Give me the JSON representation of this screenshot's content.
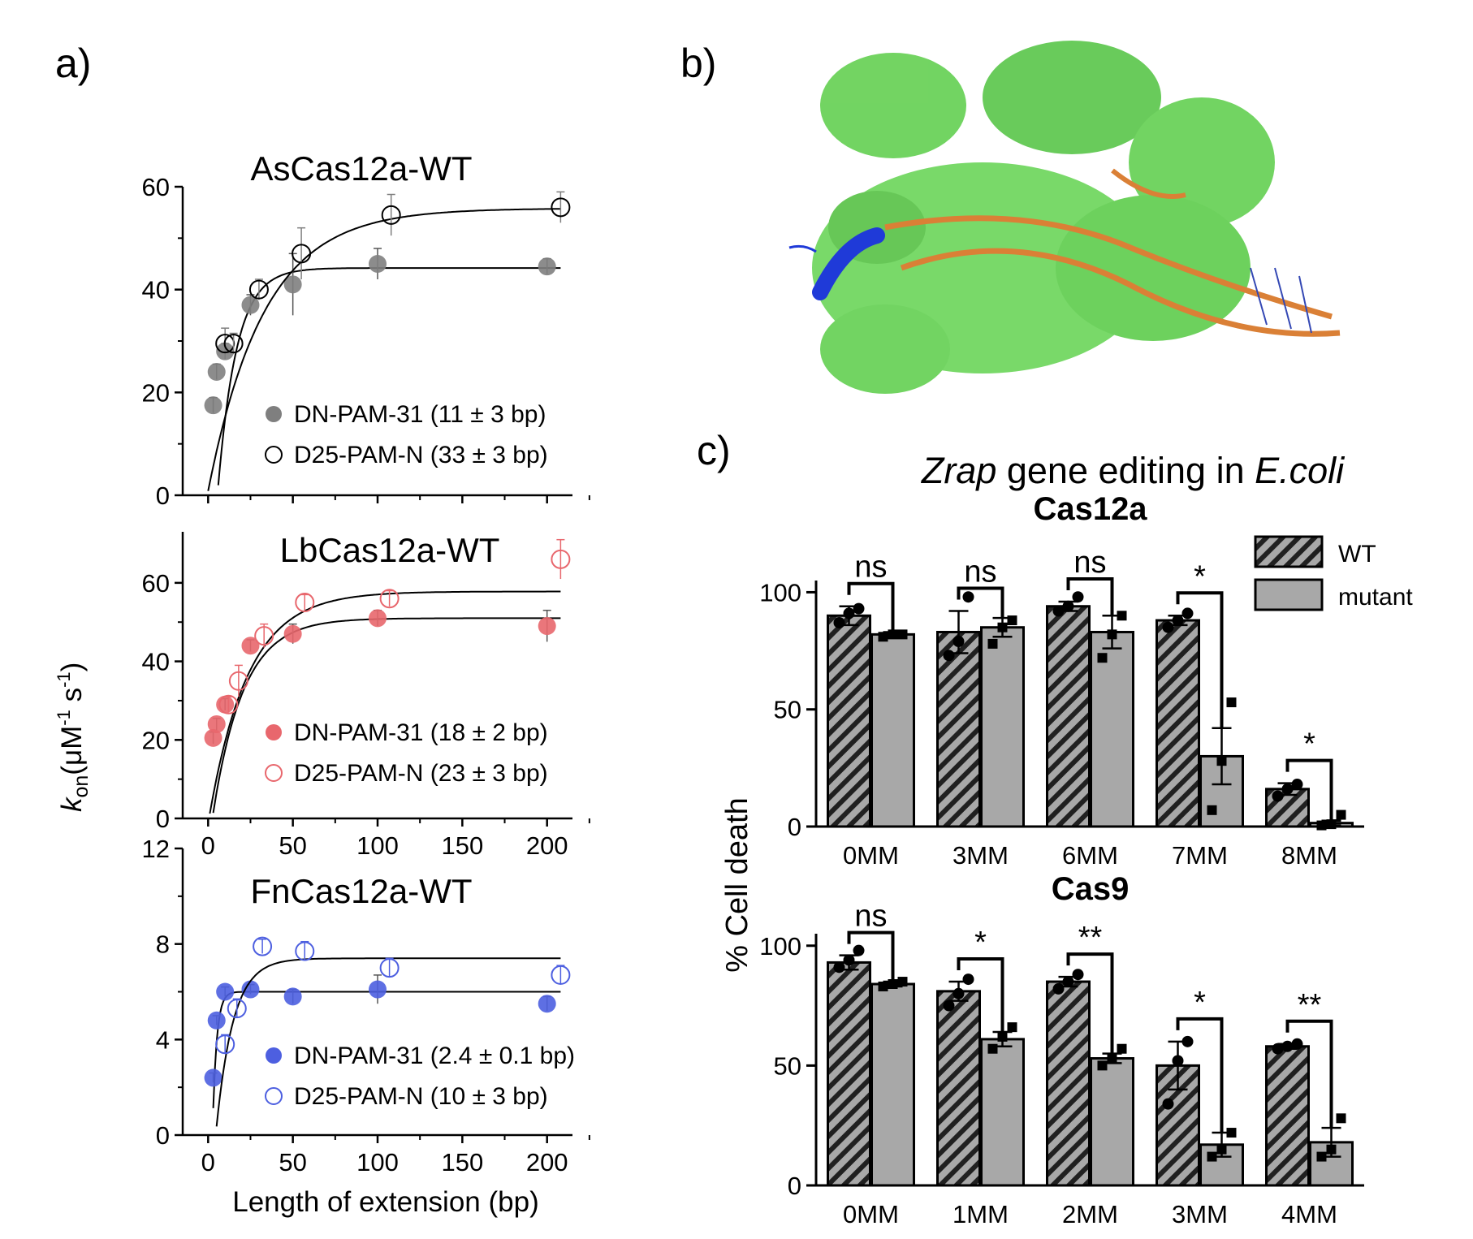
{
  "panel_labels": {
    "a": "a)",
    "b": "b)",
    "c": "c)"
  },
  "colors": {
    "grey": "#7f7f7f",
    "red": "#e8676d",
    "blue": "#4d5fe0",
    "protein_green": "#6bd25a",
    "helix_blue": "#1430d6",
    "dna_orange": "#d97a2c",
    "bar_grey": "#a8a8a8"
  },
  "structure_image": {
    "icon": "protein-structure-icon"
  },
  "shared": {
    "ylabel_main": "k",
    "ylabel_sub": "on",
    "ylabel_rest": "(μM",
    "ylabel_sup": "-1",
    "ylabel_rest2": " s",
    "ylabel_sup2": "-1",
    "ylabel_close": ")",
    "xlabel": "Length of extension (bp)",
    "xticks": [
      "0",
      "50",
      "100",
      "150",
      "200"
    ]
  },
  "chart_data": [
    {
      "type": "scatter",
      "title": "AsCas12a-WT",
      "xlim": [
        -15,
        215
      ],
      "ylim": [
        0,
        60
      ],
      "yticks": [
        "0",
        "20",
        "40",
        "60"
      ],
      "show_xticks": false,
      "color": "#7f7f7f",
      "series": [
        {
          "name": "DN-PAM-31",
          "legend": "DN-PAM-31 (11 ± 3 bp)",
          "filled": true,
          "x": [
            3,
            5,
            10,
            25,
            50,
            100,
            200
          ],
          "y": [
            17.5,
            24,
            28,
            37,
            41,
            45,
            44.5
          ],
          "err": [
            1.5,
            1.5,
            1.5,
            2,
            6,
            3,
            1.5
          ],
          "fit": {
            "a": 44.2,
            "tau": 11,
            "c": 6
          }
        },
        {
          "name": "D25-PAM-N",
          "legend": "D25-PAM-N (33 ± 3 bp)",
          "filled": false,
          "x": [
            10,
            15,
            30,
            55,
            108,
            208
          ],
          "y": [
            29.5,
            29.5,
            40,
            47,
            54.5,
            56
          ],
          "err": [
            3,
            2,
            2,
            5,
            4,
            3
          ],
          "fit": {
            "a": 55.8,
            "tau": 33,
            "c": 0
          }
        }
      ]
    },
    {
      "type": "scatter",
      "title": "LbCas12a-WT",
      "xlim": [
        -15,
        215
      ],
      "ylim": [
        0,
        73
      ],
      "yticks": [
        "0",
        "20",
        "40",
        "60"
      ],
      "show_xticks": true,
      "color": "#e8676d",
      "series": [
        {
          "name": "DN-PAM-31",
          "legend": "DN-PAM-31 (18 ± 2 bp)",
          "filled": true,
          "x": [
            3,
            5,
            10,
            25,
            50,
            100,
            200
          ],
          "y": [
            20.5,
            24,
            29,
            44,
            47,
            51,
            49
          ],
          "err": [
            1.5,
            1.5,
            1.5,
            1.5,
            2.5,
            2,
            4
          ],
          "fit": {
            "a": 51,
            "tau": 18,
            "c": 3
          }
        },
        {
          "name": "D25-PAM-N",
          "legend": "D25-PAM-N (23 ± 3 bp)",
          "filled": false,
          "x": [
            12,
            18,
            33,
            57,
            107,
            208
          ],
          "y": [
            29,
            35,
            46.5,
            55,
            56,
            66
          ],
          "err": [
            2,
            4,
            3,
            2,
            2,
            5
          ],
          "fit": {
            "a": 57.8,
            "tau": 23,
            "c": 1
          }
        }
      ]
    },
    {
      "type": "scatter",
      "title": "FnCas12a-WT",
      "xlim": [
        -15,
        215
      ],
      "ylim": [
        0,
        12
      ],
      "yticks": [
        "0",
        "4",
        "8",
        "12"
      ],
      "show_xticks": true,
      "color": "#4d5fe0",
      "series": [
        {
          "name": "DN-PAM-31",
          "legend": "DN-PAM-31 (2.4 ± 0.1 bp)",
          "filled": true,
          "x": [
            3,
            5,
            10,
            25,
            50,
            100,
            200
          ],
          "y": [
            2.4,
            4.8,
            6.0,
            6.1,
            5.8,
            6.1,
            5.5
          ],
          "err": [
            0.2,
            0.2,
            0.2,
            0.2,
            0.3,
            0.6,
            0.3
          ],
          "fit": {
            "a": 6.0,
            "tau": 2.4,
            "c": 3
          }
        },
        {
          "name": "D25-PAM-N",
          "legend": "D25-PAM-N (10 ± 3 bp)",
          "filled": false,
          "x": [
            10,
            17,
            32,
            57,
            107,
            208
          ],
          "y": [
            3.8,
            5.3,
            7.9,
            7.7,
            7.0,
            6.7
          ],
          "err": [
            0.4,
            0.4,
            0.3,
            0.4,
            0.4,
            0.4
          ],
          "fit": {
            "a": 7.4,
            "tau": 10,
            "c": 5
          }
        }
      ]
    },
    {
      "type": "bar",
      "title": "Cas12a",
      "ylabel": "% Cell death",
      "ylim": [
        0,
        105
      ],
      "yticks": [
        "0",
        "50",
        "100"
      ],
      "categories": [
        "0MM",
        "3MM",
        "6MM",
        "7MM",
        "8MM"
      ],
      "series": [
        {
          "name": "WT",
          "values": [
            90,
            83,
            94,
            88,
            16
          ],
          "err": [
            4,
            9,
            2,
            2,
            2.5
          ],
          "points": [
            [
              87,
              91,
              93
            ],
            [
              73,
              79,
              98
            ],
            [
              92,
              94,
              98
            ],
            [
              85,
              88,
              91
            ],
            [
              13,
              16,
              18
            ]
          ]
        },
        {
          "name": "mutant",
          "values": [
            82,
            85,
            83,
            30,
            1.5
          ],
          "err": [
            1,
            4,
            7,
            12,
            1
          ],
          "points": [
            [
              81,
              82,
              82
            ],
            [
              78,
              85,
              88
            ],
            [
              72,
              82,
              90
            ],
            [
              7,
              28,
              53
            ],
            [
              0.5,
              1,
              5
            ]
          ]
        }
      ],
      "significance": [
        "ns",
        "ns",
        "ns",
        "*",
        "*"
      ]
    },
    {
      "type": "bar",
      "title": "Cas9",
      "ylim": [
        0,
        105
      ],
      "yticks": [
        "0",
        "50",
        "100"
      ],
      "categories": [
        "0MM",
        "1MM",
        "2MM",
        "3MM",
        "4MM"
      ],
      "series": [
        {
          "name": "WT",
          "values": [
            93,
            81,
            85,
            50,
            58
          ],
          "err": [
            3,
            4,
            2,
            10,
            1
          ],
          "points": [
            [
              91,
              94,
              98
            ],
            [
              75,
              80,
              86
            ],
            [
              82,
              85,
              88
            ],
            [
              34,
              52,
              60
            ],
            [
              57,
              58,
              59
            ]
          ]
        },
        {
          "name": "mutant",
          "values": [
            84,
            61,
            53,
            17,
            18
          ],
          "err": [
            1,
            3,
            2,
            5,
            6
          ],
          "points": [
            [
              83,
              84,
              85
            ],
            [
              57,
              62,
              66
            ],
            [
              50,
              53,
              57
            ],
            [
              12,
              15,
              22
            ],
            [
              12,
              15,
              28
            ]
          ]
        }
      ],
      "significance": [
        "ns",
        "*",
        "**",
        "*",
        "**"
      ]
    }
  ],
  "panel_c": {
    "title_italic_1": "Zrap",
    "title_plain": " gene editing in ",
    "title_italic_2": "E.coli",
    "legend": {
      "wt": "WT",
      "mutant": "mutant"
    }
  }
}
